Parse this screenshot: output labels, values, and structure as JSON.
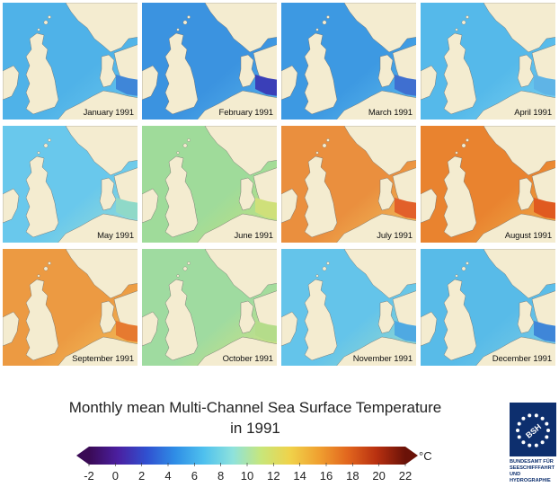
{
  "panels": [
    {
      "label": "January 1991",
      "sea": "#4fb2e8",
      "sea2": "#6cc8ec",
      "baltic": "#3f86d8"
    },
    {
      "label": "February 1991",
      "sea": "#3b93e0",
      "sea2": "#58b4ea",
      "baltic": "#3a3fb8"
    },
    {
      "label": "March 1991",
      "sea": "#3d99e2",
      "sea2": "#5fbdec",
      "baltic": "#3f6fd0"
    },
    {
      "label": "April 1991",
      "sea": "#55b9ea",
      "sea2": "#7dd3ef",
      "baltic": "#5fb4e6"
    },
    {
      "label": "May 1991",
      "sea": "#69c8ec",
      "sea2": "#9ee0d2",
      "baltic": "#8fd9c8"
    },
    {
      "label": "June 1991",
      "sea": "#9fdb9a",
      "sea2": "#c7e27a",
      "baltic": "#cfe07a"
    },
    {
      "label": "July 1991",
      "sea": "#ea8f3e",
      "sea2": "#f2c460",
      "baltic": "#e2602a"
    },
    {
      "label": "August 1991",
      "sea": "#e9832f",
      "sea2": "#f0b24d",
      "baltic": "#e05a20"
    },
    {
      "label": "September 1991",
      "sea": "#ec9a42",
      "sea2": "#f3c55f",
      "baltic": "#e67a30"
    },
    {
      "label": "October 1991",
      "sea": "#9fdba0",
      "sea2": "#d9e37a",
      "baltic": "#b4dc8a"
    },
    {
      "label": "November 1991",
      "sea": "#64c4ea",
      "sea2": "#9ddcc8",
      "baltic": "#4fa9e2"
    },
    {
      "label": "December 1991",
      "sea": "#58bbe8",
      "sea2": "#7fcfe4",
      "baltic": "#3f86d8"
    }
  ],
  "land_color": "#f4ecd0",
  "title_line1": "Monthly mean Multi-Channel Sea Surface Temperature",
  "title_line2": "in 1991",
  "colorbar": {
    "min": -2,
    "max": 22,
    "ticks": [
      "-2",
      "0",
      "2",
      "4",
      "6",
      "8",
      "10",
      "12",
      "14",
      "16",
      "18",
      "20",
      "22"
    ],
    "unit": "°C",
    "colors": [
      "#3a0a55",
      "#4b1fa0",
      "#3050d0",
      "#2f8ee6",
      "#4fc1ee",
      "#8ee2dc",
      "#c8e67a",
      "#f0d24a",
      "#f0a030",
      "#e2661e",
      "#b83010",
      "#6a1208"
    ]
  },
  "logo": {
    "emblem": "BSH",
    "lines": [
      "BUNDESAMT FÜR",
      "SEESCHIFFFAHRT",
      "UND",
      "HYDROGRAPHIE"
    ],
    "color": "#0d2f6e"
  }
}
